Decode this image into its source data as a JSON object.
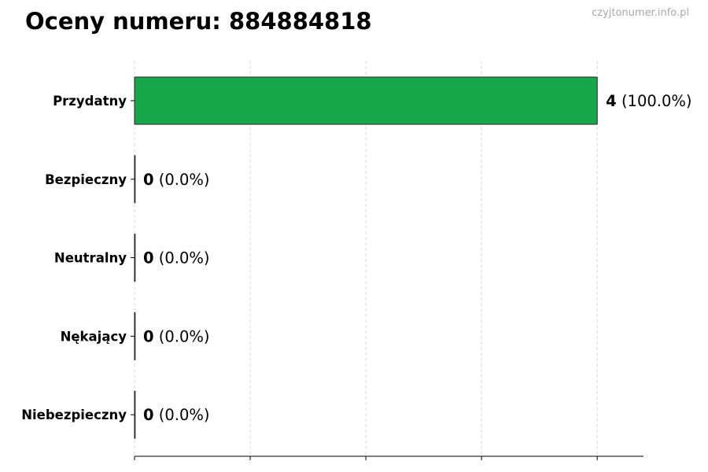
{
  "title": "Oceny numeru: 884884818",
  "watermark": "czyjtonumer.info.pl",
  "chart_data": {
    "type": "bar",
    "orientation": "horizontal",
    "title": "Oceny numeru: 884884818",
    "categories": [
      "Przydatny",
      "Bezpieczny",
      "Neutralny",
      "Nękający",
      "Niebezpieczny"
    ],
    "values": [
      4,
      0,
      0,
      0,
      0
    ],
    "data_labels": [
      {
        "count": "4",
        "pct": "(100.0%)"
      },
      {
        "count": "0",
        "pct": "(0.0%)"
      },
      {
        "count": "0",
        "pct": "(0.0%)"
      },
      {
        "count": "0",
        "pct": "(0.0%)"
      },
      {
        "count": "0",
        "pct": "(0.0%)"
      }
    ],
    "xlim": [
      0,
      4.4
    ],
    "xticks": [
      0,
      1,
      2,
      3,
      4
    ],
    "xtick_labels_visible": false,
    "grid": "vertical dashed",
    "bar_color": "#17a64a",
    "xlabel": "",
    "ylabel": ""
  }
}
